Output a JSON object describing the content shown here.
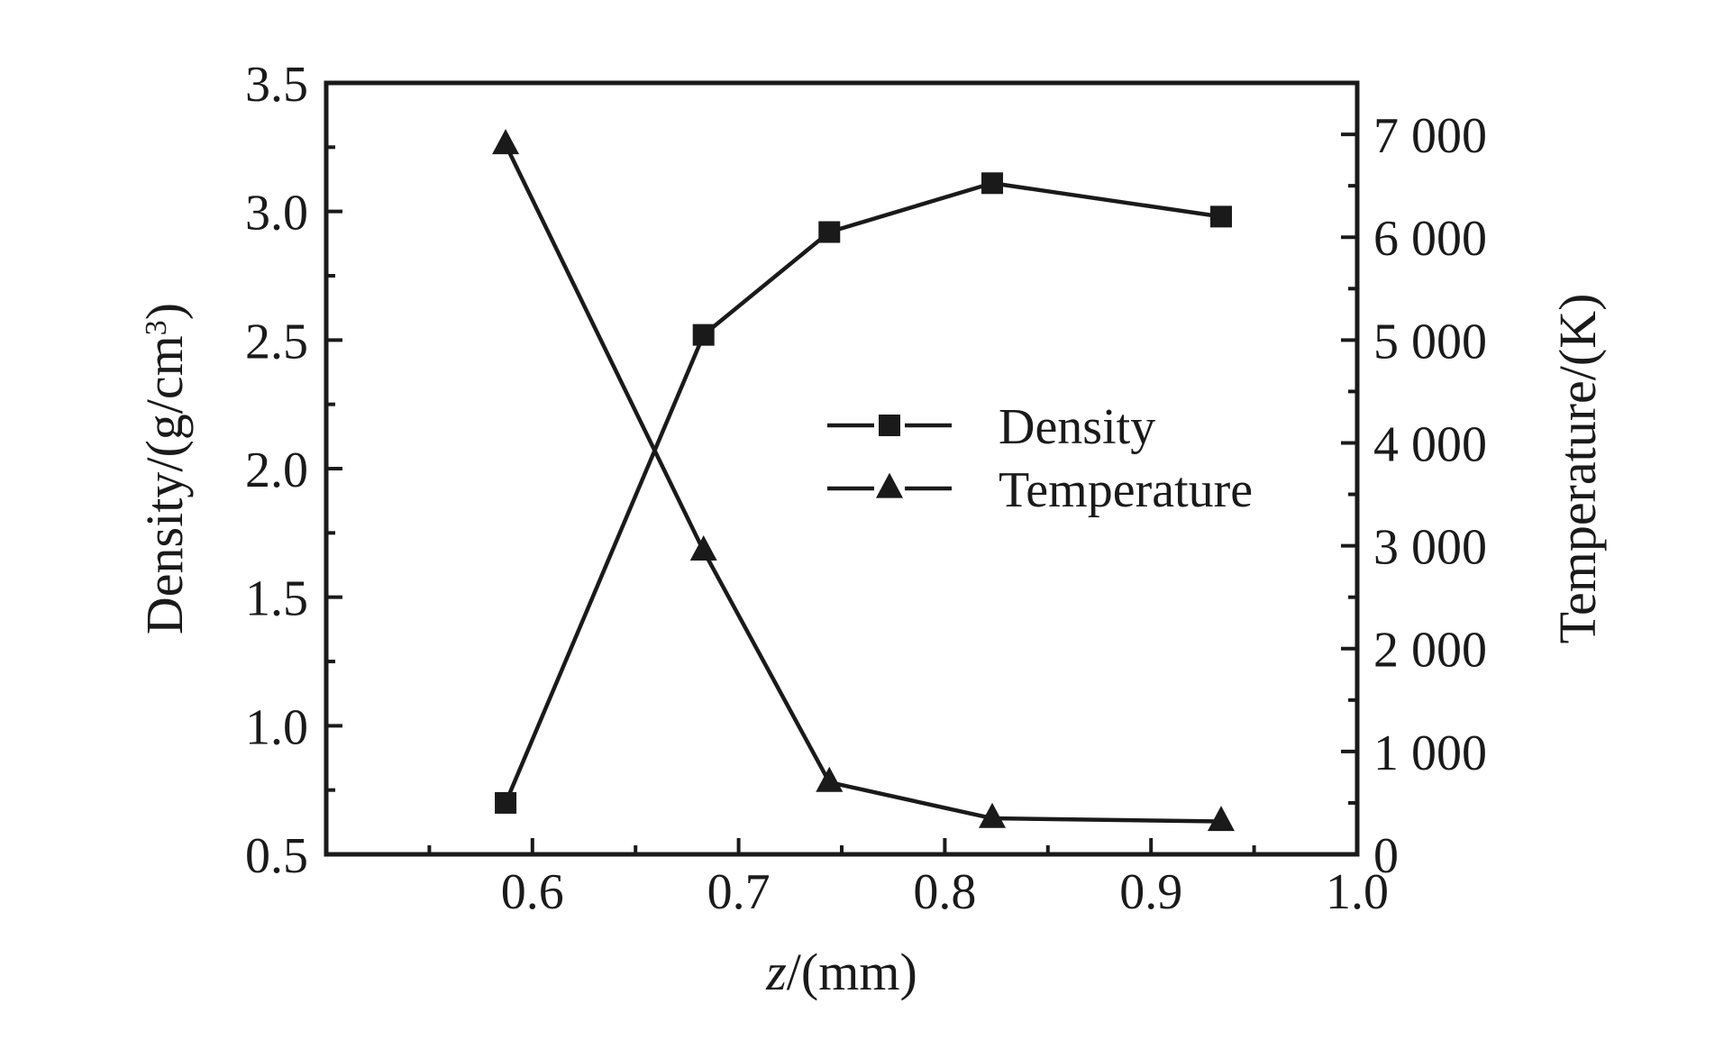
{
  "chart_data": {
    "type": "line",
    "x_axis": {
      "label_var": "z",
      "label_unit": "/(mm)",
      "range": [
        0.5,
        1.0
      ],
      "ticks": [
        0.6,
        0.7,
        0.8,
        0.9,
        1.0
      ],
      "tick_labels": [
        "0.6",
        "0.7",
        "0.8",
        "0.9",
        "1.0"
      ],
      "minor_ticks": [
        0.55,
        0.65,
        0.75,
        0.85,
        0.95
      ]
    },
    "y_axis_left": {
      "label": "Density/(g/cm",
      "label_sup": "3",
      "label_close": ")",
      "range": [
        0.5,
        3.5
      ],
      "ticks": [
        0.5,
        1.0,
        1.5,
        2.0,
        2.5,
        3.0,
        3.5
      ],
      "tick_labels": [
        "0.5",
        "1.0",
        "1.5",
        "2.0",
        "2.5",
        "3.0",
        "3.5"
      ],
      "minor_ticks": [
        0.75,
        1.25,
        1.75,
        2.25,
        2.75,
        3.25
      ]
    },
    "y_axis_right": {
      "label": "Temperature/(K)",
      "range": [
        0,
        7500
      ],
      "ticks": [
        0,
        1000,
        2000,
        3000,
        4000,
        5000,
        6000,
        7000
      ],
      "tick_labels": [
        "0",
        "1 000",
        "2 000",
        "3 000",
        "4 000",
        "5 000",
        "6 000",
        "7 000"
      ],
      "minor_ticks": [
        500,
        1500,
        2500,
        3500,
        4500,
        5500,
        6500
      ]
    },
    "series": [
      {
        "name": "Density",
        "axis": "left",
        "marker": "square",
        "x": [
          0.587,
          0.683,
          0.744,
          0.823,
          0.934
        ],
        "y": [
          0.7,
          2.52,
          2.92,
          3.11,
          2.98
        ]
      },
      {
        "name": "Temperature",
        "axis": "right",
        "marker": "triangle",
        "x": [
          0.587,
          0.683,
          0.744,
          0.823,
          0.934
        ],
        "y": [
          6900,
          2950,
          700,
          350,
          320
        ]
      }
    ],
    "legend_position": "center-right",
    "grid": false,
    "color": "#1a1a1a"
  }
}
